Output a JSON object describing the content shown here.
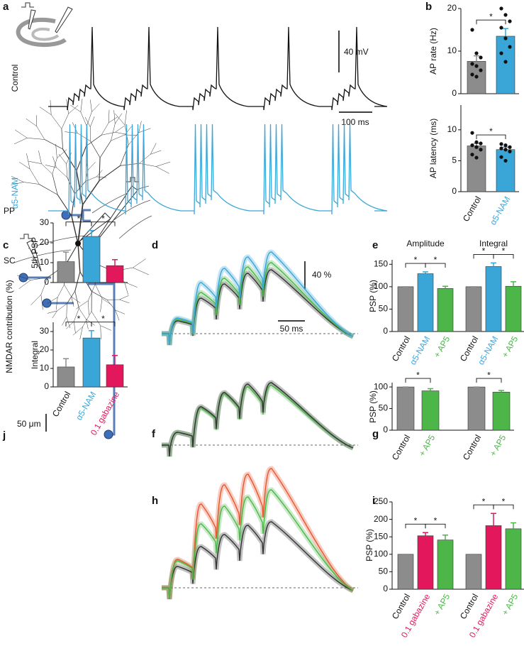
{
  "panel_labels": {
    "a": "a",
    "b": "b",
    "c": "c",
    "d": "d",
    "e": "e",
    "f": "f",
    "g": "g",
    "h": "h",
    "i": "i",
    "j": "j"
  },
  "trace_labels": {
    "control": "Control",
    "nam": "α5-NAM"
  },
  "scale_bars": {
    "a_voltage": "40 mV",
    "a_time": "100 ms",
    "d_percent": "40 %",
    "d_time": "50 ms",
    "c_length": "50 μm"
  },
  "region_labels": {
    "pp": "PP",
    "sc": "SC"
  },
  "shared_ylabel": "NMDAR contribution (%)",
  "chart_data": [
    {
      "type": "bar",
      "ylabel": "AP rate (Hz)",
      "categories": [
        "Control",
        "α5-NAM"
      ],
      "values": [
        7.6,
        13.5
      ],
      "errors": [
        1.3,
        1.8
      ],
      "colors": [
        "#8c8c8c",
        "#3aa6d8"
      ],
      "ylim": [
        0,
        20
      ],
      "yticks": [
        0,
        10,
        20
      ],
      "points": [
        [
          15,
          9.5,
          8.5,
          7,
          6.5,
          5.5,
          4.5,
          4
        ],
        [
          20,
          18.5,
          17,
          15.5,
          13,
          11,
          9.5,
          7.5
        ]
      ],
      "significance": [
        {
          "label": "*",
          "pair": [
            0,
            1
          ]
        }
      ]
    },
    {
      "type": "bar",
      "ylabel": "AP latency (ms)",
      "categories": [
        "Control",
        "α5-NAM"
      ],
      "values": [
        7.4,
        6.8
      ],
      "errors": [
        0.4,
        0.4
      ],
      "colors": [
        "#8c8c8c",
        "#3aa6d8"
      ],
      "ylim": [
        0,
        14
      ],
      "yticks": [
        0,
        5,
        10
      ],
      "points": [
        [
          9.5,
          8,
          7.8,
          7.5,
          7.2,
          6.8,
          6,
          5.5
        ],
        [
          7.7,
          7.5,
          7.2,
          7,
          6.8,
          6.5,
          5.6,
          5
        ]
      ],
      "significance": [
        {
          "label": "*",
          "pair": [
            0,
            1
          ]
        }
      ]
    },
    {
      "type": "bar",
      "ylabel": "PSP (%)",
      "groups": [
        "Amplitude",
        "Integral"
      ],
      "categories": [
        "Control",
        "α5-NAM",
        "+ AP5",
        "Control",
        "α5-NAM",
        "+ AP5"
      ],
      "values": [
        100,
        129,
        96,
        100,
        145,
        101
      ],
      "errors": [
        0,
        4,
        5,
        0,
        8,
        10
      ],
      "colors": [
        "#8c8c8c",
        "#3aa6d8",
        "#4cb748",
        "#8c8c8c",
        "#3aa6d8",
        "#4cb748"
      ],
      "ylim": [
        0,
        160
      ],
      "yticks": [
        0,
        50,
        100,
        150
      ],
      "significance": [
        {
          "label": "*",
          "pair": [
            0,
            1
          ]
        },
        {
          "label": "*",
          "pair": [
            1,
            2
          ]
        },
        {
          "label": "*",
          "pair": [
            3,
            4
          ]
        },
        {
          "label": "*",
          "pair": [
            4,
            5
          ]
        }
      ]
    },
    {
      "type": "bar",
      "ylabel": "PSP (%)",
      "categories": [
        "Control",
        "+ AP5",
        "Control",
        "+ AP5"
      ],
      "values": [
        100,
        91,
        100,
        88
      ],
      "errors": [
        0,
        5,
        0,
        4
      ],
      "colors": [
        "#8c8c8c",
        "#4cb748",
        "#8c8c8c",
        "#4cb748"
      ],
      "ylim": [
        0,
        110
      ],
      "yticks": [
        0,
        50,
        100
      ],
      "significance": [
        {
          "label": "*",
          "pair": [
            0,
            1
          ]
        },
        {
          "label": "*",
          "pair": [
            2,
            3
          ]
        }
      ]
    },
    {
      "type": "bar",
      "ylabel": "PSP (%)",
      "categories": [
        "Control",
        "0.1 gabazine",
        "+ AP5",
        "Control",
        "0.1 gabazine",
        "+ AP5"
      ],
      "values": [
        100,
        153,
        141,
        100,
        182,
        173
      ],
      "errors": [
        0,
        9,
        14,
        0,
        35,
        17
      ],
      "colors": [
        "#8c8c8c",
        "#e3185c",
        "#4cb748",
        "#8c8c8c",
        "#e3185c",
        "#4cb748"
      ],
      "ylim": [
        0,
        250
      ],
      "yticks": [
        0,
        50,
        100,
        150,
        200,
        250
      ],
      "significance": [
        {
          "label": "*",
          "pair": [
            0,
            1
          ]
        },
        {
          "label": "*",
          "pair": [
            1,
            2
          ]
        },
        {
          "label": "*",
          "pair": [
            3,
            4
          ]
        },
        {
          "label": "*",
          "pair": [
            4,
            5
          ]
        }
      ]
    },
    {
      "type": "bar",
      "ylabel": "5th PSP",
      "categories": [
        "Control",
        "α5-NAM",
        "0.1 gabazine"
      ],
      "values": [
        10.5,
        23.2,
        8.5
      ],
      "errors": [
        4.8,
        3,
        3
      ],
      "colors": [
        "#8c8c8c",
        "#3aa6d8",
        "#e3185c"
      ],
      "ylim": [
        0,
        30
      ],
      "yticks": [
        0,
        10,
        20,
        30
      ],
      "significance": [
        {
          "label": "*",
          "pair": [
            0,
            1
          ]
        },
        {
          "label": "*",
          "pair": [
            1,
            2
          ]
        }
      ]
    },
    {
      "type": "bar",
      "ylabel": "Integral",
      "categories": [
        "Control",
        "α5-NAM",
        "0.1 gabazine"
      ],
      "values": [
        10.8,
        26.5,
        12
      ],
      "errors": [
        4.5,
        4,
        5
      ],
      "colors": [
        "#8c8c8c",
        "#3aa6d8",
        "#e3185c"
      ],
      "ylim": [
        0,
        35
      ],
      "yticks": [
        0,
        10,
        20,
        30
      ],
      "significance": [
        {
          "label": "*",
          "pair": [
            0,
            1
          ]
        },
        {
          "label": "*",
          "pair": [
            1,
            2
          ]
        }
      ]
    }
  ]
}
